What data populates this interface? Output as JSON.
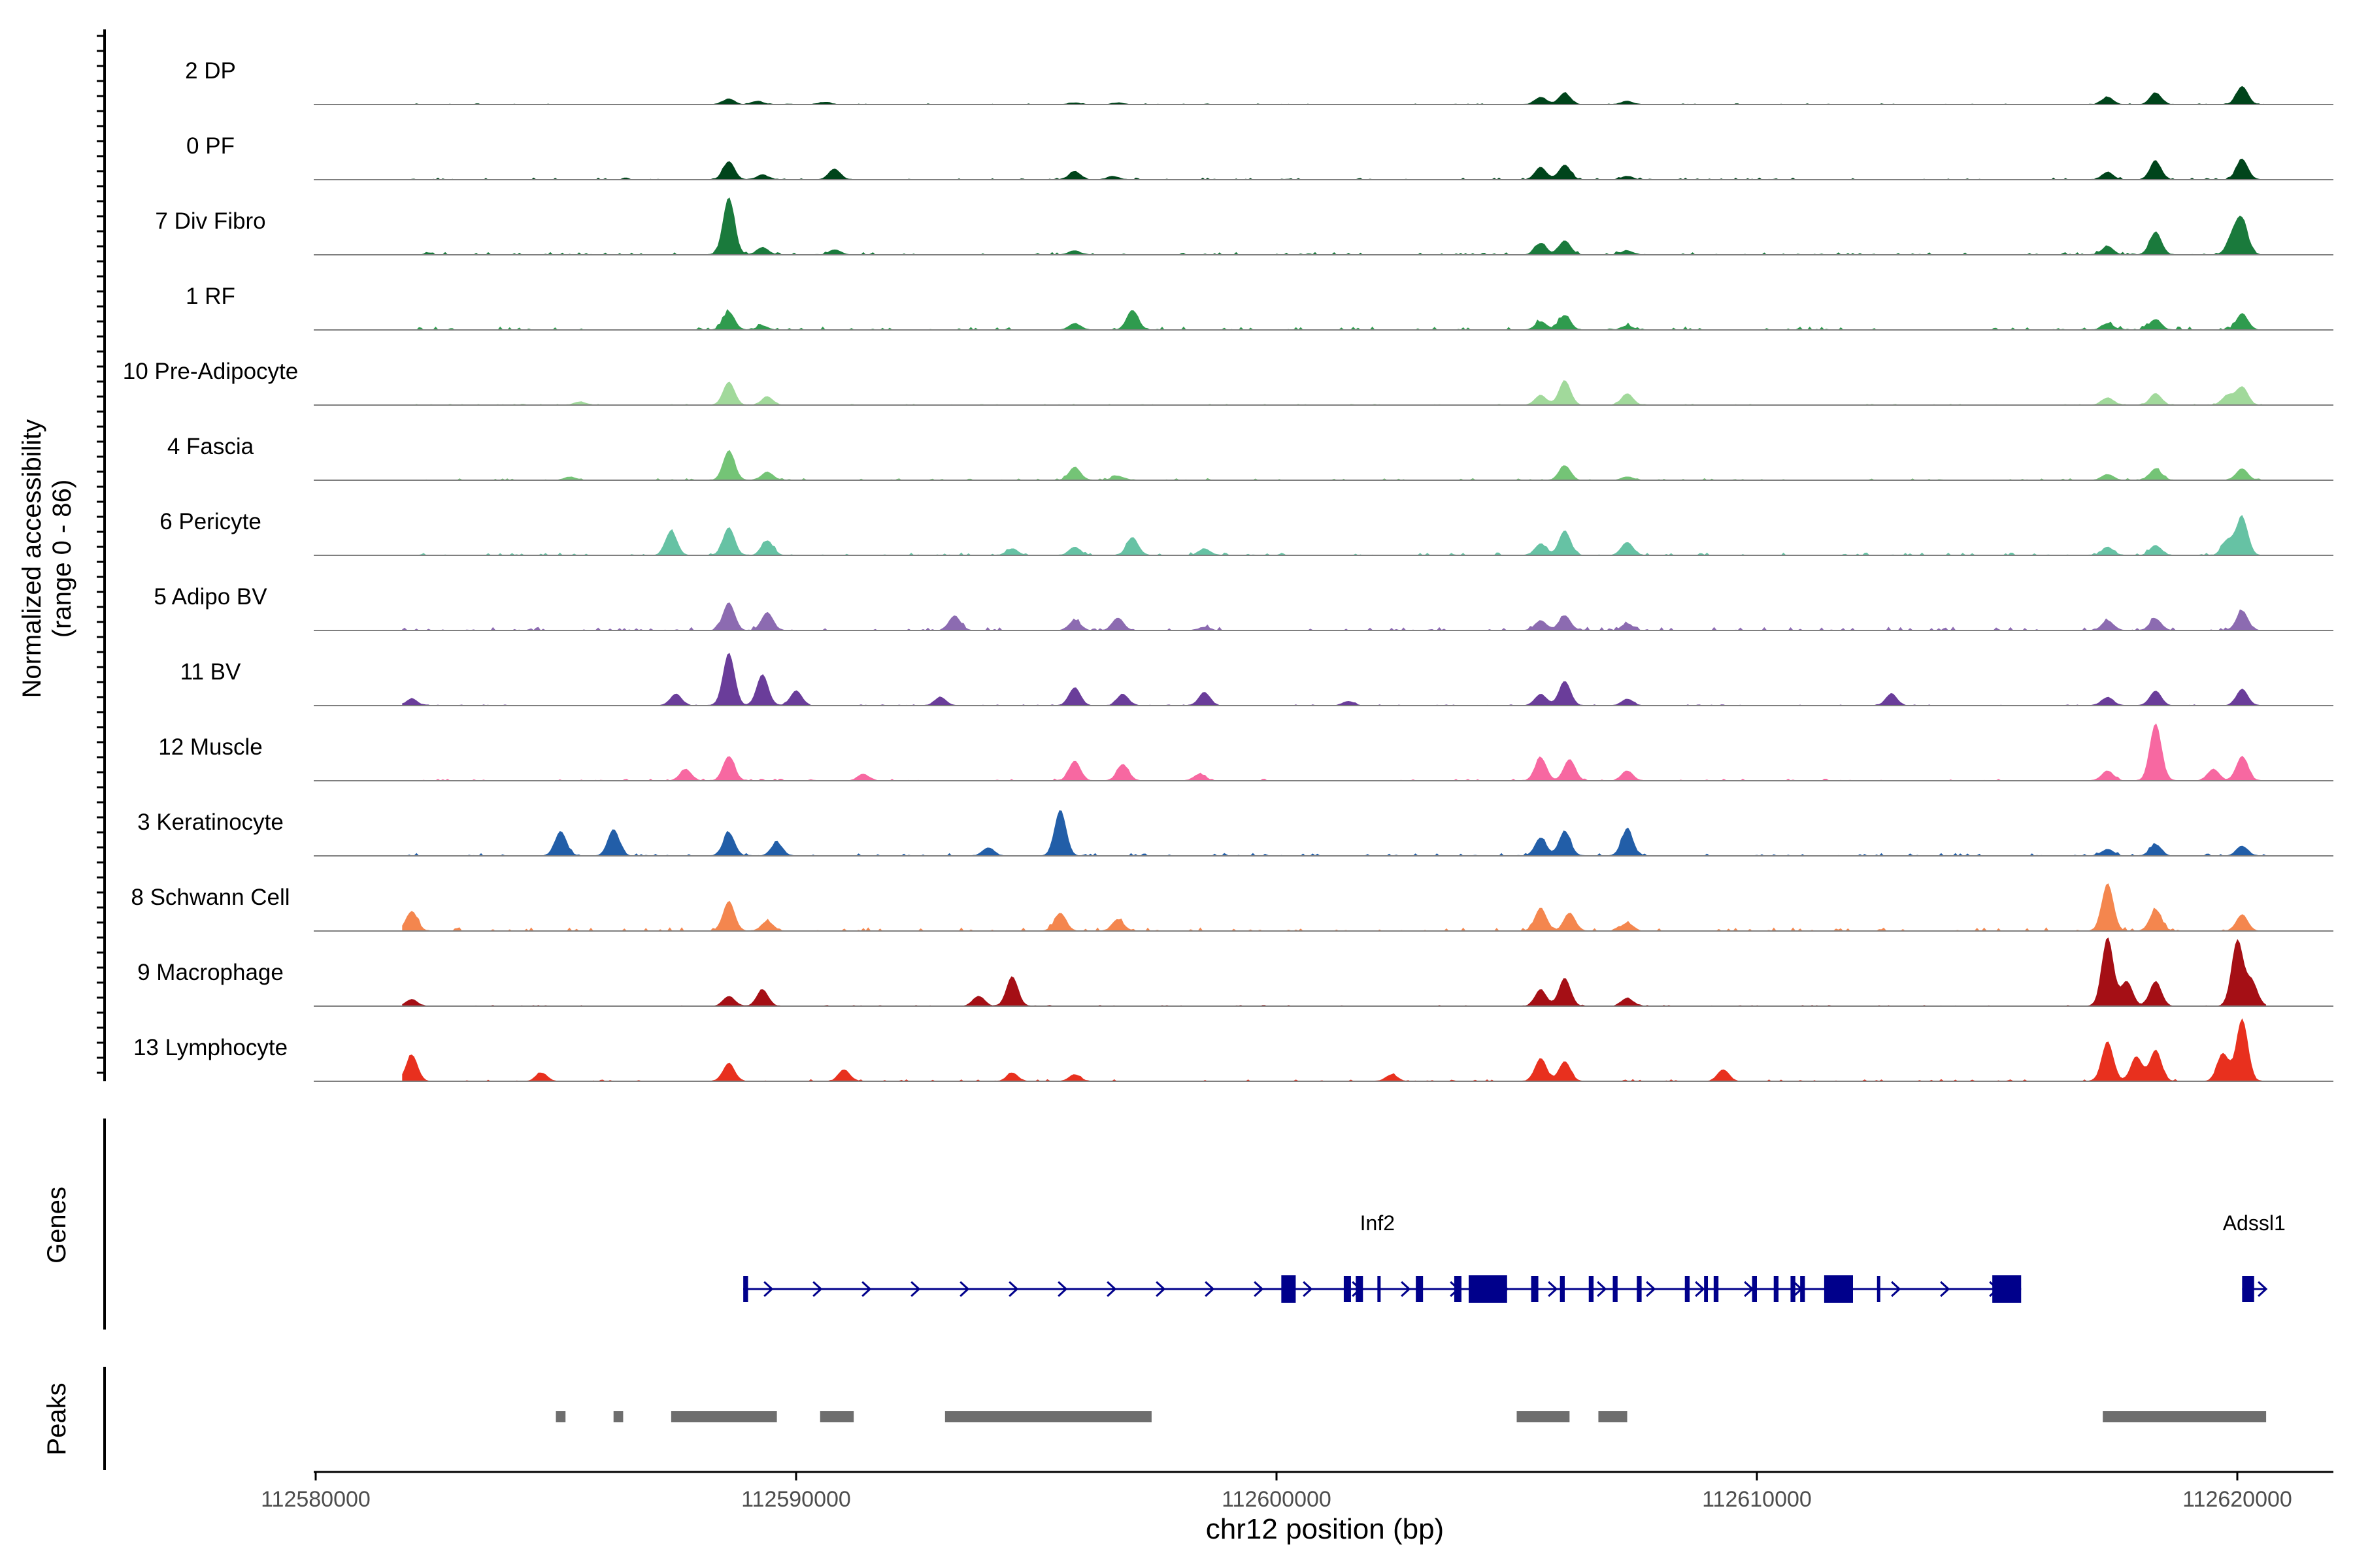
{
  "chart_data": {
    "type": "area",
    "title": "",
    "ylabel_line1": "Normalized accessibility",
    "ylabel_line2": "(range 0 - 86)",
    "y_range": [
      0,
      86
    ],
    "xlabel": "chr12 position (bp)",
    "xlim": [
      112580000,
      112622000
    ],
    "x_ticks": [
      112580000,
      112590000,
      112600000,
      112610000,
      112620000
    ],
    "x_tick_labels": [
      "112580000",
      "112590000",
      "112600000",
      "112610000",
      "112620000"
    ],
    "genes_panel_label": "Genes",
    "peaks_panel_label": "Peaks",
    "tracks": [
      {
        "name": "2 DP",
        "color": "#00441b",
        "peaks": [
          [
            112588600,
            7
          ],
          [
            112589200,
            4
          ],
          [
            112590600,
            3
          ],
          [
            112595800,
            2
          ],
          [
            112596700,
            2
          ],
          [
            112605500,
            9
          ],
          [
            112606000,
            14
          ],
          [
            112607300,
            4
          ],
          [
            112617300,
            9
          ],
          [
            112618300,
            14
          ],
          [
            112620100,
            22
          ]
        ]
      },
      {
        "name": "0 PF",
        "color": "#00441b",
        "peaks": [
          [
            112588600,
            22
          ],
          [
            112589300,
            6
          ],
          [
            112590800,
            13
          ],
          [
            112595800,
            10
          ],
          [
            112596600,
            4
          ],
          [
            112605500,
            15
          ],
          [
            112606000,
            18
          ],
          [
            112607300,
            4
          ],
          [
            112617300,
            9
          ],
          [
            112618300,
            22
          ],
          [
            112620100,
            25
          ]
        ]
      },
      {
        "name": "7 Div Fibro",
        "color": "#1a7a3c",
        "peaks": [
          [
            112588600,
            70
          ],
          [
            112589300,
            9
          ],
          [
            112590800,
            6
          ],
          [
            112595800,
            5
          ],
          [
            112605500,
            14
          ],
          [
            112606000,
            17
          ],
          [
            112607300,
            5
          ],
          [
            112617300,
            10
          ],
          [
            112618300,
            28
          ],
          [
            112619900,
            22
          ],
          [
            112620100,
            40
          ]
        ]
      },
      {
        "name": "1 RF",
        "color": "#2f9b4e",
        "peaks": [
          [
            112588600,
            22
          ],
          [
            112589300,
            5
          ],
          [
            112595800,
            8
          ],
          [
            112597000,
            24
          ],
          [
            112605500,
            10
          ],
          [
            112606000,
            18
          ],
          [
            112607300,
            5
          ],
          [
            112617300,
            8
          ],
          [
            112618300,
            13
          ],
          [
            112620100,
            20
          ]
        ]
      },
      {
        "name": "10 Pre-Adipocyte",
        "color": "#a1d99b",
        "peaks": [
          [
            112585500,
            4
          ],
          [
            112588600,
            28
          ],
          [
            112589400,
            10
          ],
          [
            112605500,
            12
          ],
          [
            112606000,
            30
          ],
          [
            112607300,
            14
          ],
          [
            112617300,
            9
          ],
          [
            112618300,
            14
          ],
          [
            112619800,
            12
          ],
          [
            112620100,
            22
          ]
        ]
      },
      {
        "name": "4 Fascia",
        "color": "#74c476",
        "peaks": [
          [
            112585300,
            4
          ],
          [
            112588600,
            36
          ],
          [
            112589400,
            10
          ],
          [
            112595800,
            16
          ],
          [
            112596700,
            5
          ],
          [
            112606000,
            18
          ],
          [
            112607300,
            4
          ],
          [
            112617300,
            7
          ],
          [
            112618300,
            14
          ],
          [
            112620100,
            14
          ]
        ]
      },
      {
        "name": "6 Pericyte",
        "color": "#66c2a4",
        "peaks": [
          [
            112587400,
            30
          ],
          [
            112588600,
            34
          ],
          [
            112589400,
            18
          ],
          [
            112594500,
            8
          ],
          [
            112595800,
            10
          ],
          [
            112597000,
            22
          ],
          [
            112598500,
            8
          ],
          [
            112605500,
            14
          ],
          [
            112606000,
            30
          ],
          [
            112607300,
            16
          ],
          [
            112617300,
            10
          ],
          [
            112618300,
            12
          ],
          [
            112619800,
            18
          ],
          [
            112620100,
            46
          ]
        ]
      },
      {
        "name": "5 Adipo BV",
        "color": "#8c6bb1",
        "peaks": [
          [
            112588600,
            34
          ],
          [
            112589400,
            22
          ],
          [
            112593300,
            18
          ],
          [
            112595800,
            12
          ],
          [
            112596700,
            15
          ],
          [
            112598500,
            4
          ],
          [
            112605500,
            12
          ],
          [
            112606000,
            18
          ],
          [
            112607300,
            8
          ],
          [
            112617300,
            12
          ],
          [
            112618300,
            14
          ],
          [
            112620100,
            24
          ]
        ]
      },
      {
        "name": "11 BV",
        "color": "#6a3d9a",
        "peaks": [
          [
            112582000,
            8
          ],
          [
            112587500,
            14
          ],
          [
            112588600,
            64
          ],
          [
            112589300,
            38
          ],
          [
            112590000,
            18
          ],
          [
            112593000,
            10
          ],
          [
            112595800,
            22
          ],
          [
            112596800,
            14
          ],
          [
            112598500,
            16
          ],
          [
            112601500,
            5
          ],
          [
            112605500,
            14
          ],
          [
            112606000,
            30
          ],
          [
            112607300,
            8
          ],
          [
            112612800,
            14
          ],
          [
            112617300,
            10
          ],
          [
            112618300,
            18
          ],
          [
            112620100,
            20
          ]
        ]
      },
      {
        "name": "12 Muscle",
        "color": "#f768a1",
        "peaks": [
          [
            112587700,
            14
          ],
          [
            112588600,
            30
          ],
          [
            112591400,
            8
          ],
          [
            112595800,
            24
          ],
          [
            112596800,
            20
          ],
          [
            112598400,
            8
          ],
          [
            112605500,
            28
          ],
          [
            112606100,
            26
          ],
          [
            112607300,
            12
          ],
          [
            112617300,
            12
          ],
          [
            112618300,
            70
          ],
          [
            112619500,
            14
          ],
          [
            112620100,
            30
          ]
        ]
      },
      {
        "name": "3 Keratinocyte",
        "color": "#225ea8",
        "peaks": [
          [
            112585100,
            30
          ],
          [
            112586200,
            32
          ],
          [
            112588600,
            28
          ],
          [
            112589600,
            16
          ],
          [
            112595500,
            56
          ],
          [
            112594000,
            10
          ],
          [
            112605500,
            22
          ],
          [
            112606000,
            30
          ],
          [
            112607300,
            32
          ],
          [
            112617300,
            8
          ],
          [
            112618300,
            14
          ],
          [
            112620100,
            12
          ]
        ]
      },
      {
        "name": "8 Schwann Cell",
        "color": "#f4864e",
        "peaks": [
          [
            112582000,
            24
          ],
          [
            112588600,
            36
          ],
          [
            112589400,
            12
          ],
          [
            112595500,
            22
          ],
          [
            112596700,
            14
          ],
          [
            112605500,
            28
          ],
          [
            112606100,
            22
          ],
          [
            112607300,
            10
          ],
          [
            112617300,
            58
          ],
          [
            112618300,
            26
          ],
          [
            112620100,
            20
          ]
        ]
      },
      {
        "name": "9 Macrophage",
        "color": "#a50f15",
        "peaks": [
          [
            112582000,
            8
          ],
          [
            112588600,
            12
          ],
          [
            112589300,
            20
          ],
          [
            112594500,
            36
          ],
          [
            112593800,
            12
          ],
          [
            112605500,
            20
          ],
          [
            112606000,
            34
          ],
          [
            112607300,
            10
          ],
          [
            112617300,
            84
          ],
          [
            112617700,
            30
          ],
          [
            112618300,
            30
          ],
          [
            112620000,
            80
          ],
          [
            112620300,
            30
          ]
        ]
      },
      {
        "name": "13 Lymphocyte",
        "color": "#e8301e",
        "peaks": [
          [
            112582000,
            32
          ],
          [
            112584700,
            10
          ],
          [
            112588600,
            22
          ],
          [
            112591000,
            14
          ],
          [
            112594500,
            10
          ],
          [
            112595800,
            8
          ],
          [
            112602400,
            8
          ],
          [
            112605500,
            28
          ],
          [
            112606000,
            24
          ],
          [
            112609300,
            14
          ],
          [
            112617300,
            48
          ],
          [
            112617900,
            30
          ],
          [
            112618300,
            38
          ],
          [
            112620100,
            76
          ],
          [
            112619700,
            34
          ]
        ]
      }
    ],
    "genes": [
      {
        "name": "Inf2",
        "start": 112588900,
        "end": 112615500,
        "strand": "+",
        "exons": [
          [
            112588900,
            112589000
          ],
          [
            112600100,
            112600400
          ],
          [
            112601400,
            112601550
          ],
          [
            112601650,
            112601800
          ],
          [
            112602100,
            112602150
          ],
          [
            112602900,
            112603050
          ],
          [
            112603700,
            112603850
          ],
          [
            112604000,
            112604800
          ],
          [
            112605300,
            112605450
          ],
          [
            112605900,
            112606000
          ],
          [
            112606500,
            112606600
          ],
          [
            112607000,
            112607100
          ],
          [
            112607500,
            112607600
          ],
          [
            112608500,
            112608600
          ],
          [
            112608900,
            112608980
          ],
          [
            112609100,
            112609200
          ],
          [
            112609900,
            112610000
          ],
          [
            112610350,
            112610450
          ],
          [
            112610700,
            112610800
          ],
          [
            112610900,
            112611000
          ],
          [
            112611400,
            112612000
          ],
          [
            112612500,
            112612550
          ],
          [
            112614900,
            112615500
          ]
        ]
      },
      {
        "name": "Adssl1",
        "start": 112620100,
        "end": 112620600,
        "strand": "+",
        "exons": [
          [
            112620100,
            112620350
          ]
        ]
      }
    ],
    "peak_regions": [
      [
        112585000,
        112585200
      ],
      [
        112586200,
        112586400
      ],
      [
        112587400,
        112589600
      ],
      [
        112590500,
        112591200
      ],
      [
        112593100,
        112597400
      ],
      [
        112605000,
        112606100
      ],
      [
        112606700,
        112607300
      ],
      [
        112617200,
        112620600
      ]
    ]
  }
}
